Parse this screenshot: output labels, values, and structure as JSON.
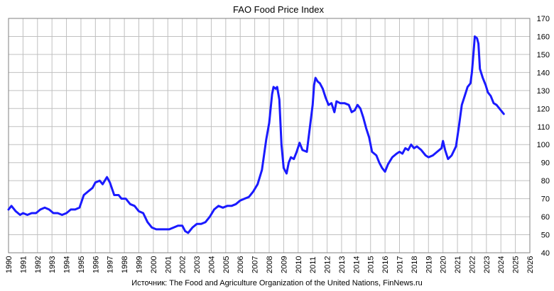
{
  "chart_data": {
    "type": "line",
    "title": "FAO Food Price Index",
    "source": "Источник: The Food and Agriculture Organization of the United Nations, FinNews.ru",
    "xlabel": "",
    "ylabel": "",
    "xlim": [
      1990,
      2026
    ],
    "ylim": [
      40,
      170
    ],
    "x_ticks": [
      1990,
      1991,
      1992,
      1993,
      1994,
      1995,
      1996,
      1997,
      1998,
      1999,
      2000,
      2001,
      2002,
      2003,
      2004,
      2005,
      2006,
      2007,
      2008,
      2009,
      2010,
      2011,
      2012,
      2013,
      2014,
      2015,
      2016,
      2017,
      2018,
      2019,
      2020,
      2021,
      2022,
      2023,
      2024,
      2025,
      2026
    ],
    "y_ticks": [
      40,
      50,
      60,
      70,
      80,
      90,
      100,
      110,
      120,
      130,
      140,
      150,
      160,
      170
    ],
    "y_axis_side": "right",
    "grid": true,
    "line_color": "#1a1aff",
    "series": [
      {
        "name": "",
        "points": [
          [
            1990.0,
            64
          ],
          [
            1990.2,
            66
          ],
          [
            1990.5,
            63
          ],
          [
            1990.8,
            61
          ],
          [
            1991.0,
            62
          ],
          [
            1991.3,
            61
          ],
          [
            1991.6,
            62
          ],
          [
            1991.9,
            62
          ],
          [
            1992.2,
            64
          ],
          [
            1992.5,
            65
          ],
          [
            1992.8,
            64
          ],
          [
            1993.1,
            62
          ],
          [
            1993.4,
            62
          ],
          [
            1993.7,
            61
          ],
          [
            1994.0,
            62
          ],
          [
            1994.3,
            64
          ],
          [
            1994.6,
            64
          ],
          [
            1994.9,
            65
          ],
          [
            1995.2,
            72
          ],
          [
            1995.5,
            74
          ],
          [
            1995.8,
            76
          ],
          [
            1996.0,
            79
          ],
          [
            1996.3,
            80
          ],
          [
            1996.5,
            78
          ],
          [
            1996.8,
            82
          ],
          [
            1997.0,
            79
          ],
          [
            1997.3,
            72
          ],
          [
            1997.6,
            72
          ],
          [
            1997.8,
            70
          ],
          [
            1998.1,
            70
          ],
          [
            1998.4,
            67
          ],
          [
            1998.7,
            66
          ],
          [
            1999.0,
            63
          ],
          [
            1999.3,
            62
          ],
          [
            1999.6,
            57
          ],
          [
            1999.9,
            54
          ],
          [
            2000.2,
            53
          ],
          [
            2000.5,
            53
          ],
          [
            2000.8,
            53
          ],
          [
            2001.1,
            53
          ],
          [
            2001.4,
            54
          ],
          [
            2001.7,
            55
          ],
          [
            2002.0,
            55
          ],
          [
            2002.2,
            52
          ],
          [
            2002.4,
            51
          ],
          [
            2002.7,
            54
          ],
          [
            2003.0,
            56
          ],
          [
            2003.3,
            56
          ],
          [
            2003.6,
            57
          ],
          [
            2003.9,
            60
          ],
          [
            2004.2,
            64
          ],
          [
            2004.5,
            66
          ],
          [
            2004.8,
            65
          ],
          [
            2005.1,
            66
          ],
          [
            2005.4,
            66
          ],
          [
            2005.7,
            67
          ],
          [
            2006.0,
            69
          ],
          [
            2006.3,
            70
          ],
          [
            2006.6,
            71
          ],
          [
            2006.9,
            74
          ],
          [
            2007.2,
            78
          ],
          [
            2007.5,
            86
          ],
          [
            2007.8,
            103
          ],
          [
            2008.0,
            112
          ],
          [
            2008.2,
            128
          ],
          [
            2008.3,
            132
          ],
          [
            2008.45,
            131
          ],
          [
            2008.55,
            132
          ],
          [
            2008.7,
            125
          ],
          [
            2008.85,
            100
          ],
          [
            2009.0,
            87
          ],
          [
            2009.2,
            84
          ],
          [
            2009.35,
            90
          ],
          [
            2009.5,
            93
          ],
          [
            2009.7,
            92
          ],
          [
            2009.9,
            96
          ],
          [
            2010.1,
            101
          ],
          [
            2010.3,
            97
          ],
          [
            2010.6,
            96
          ],
          [
            2010.8,
            109
          ],
          [
            2011.0,
            122
          ],
          [
            2011.1,
            133
          ],
          [
            2011.2,
            137
          ],
          [
            2011.35,
            135
          ],
          [
            2011.5,
            134
          ],
          [
            2011.7,
            131
          ],
          [
            2011.9,
            126
          ],
          [
            2012.1,
            122
          ],
          [
            2012.3,
            123
          ],
          [
            2012.5,
            118
          ],
          [
            2012.65,
            124
          ],
          [
            2012.9,
            123
          ],
          [
            2013.2,
            123
          ],
          [
            2013.5,
            122
          ],
          [
            2013.7,
            118
          ],
          [
            2013.9,
            119
          ],
          [
            2014.1,
            122
          ],
          [
            2014.3,
            120
          ],
          [
            2014.5,
            115
          ],
          [
            2014.7,
            109
          ],
          [
            2014.9,
            104
          ],
          [
            2015.1,
            96
          ],
          [
            2015.4,
            94
          ],
          [
            2015.6,
            90
          ],
          [
            2015.8,
            87
          ],
          [
            2016.0,
            85
          ],
          [
            2016.2,
            89
          ],
          [
            2016.5,
            93
          ],
          [
            2016.8,
            95
          ],
          [
            2017.0,
            96
          ],
          [
            2017.2,
            95
          ],
          [
            2017.4,
            98
          ],
          [
            2017.6,
            97
          ],
          [
            2017.8,
            100
          ],
          [
            2018.0,
            98
          ],
          [
            2018.2,
            99
          ],
          [
            2018.5,
            97
          ],
          [
            2018.8,
            94
          ],
          [
            2019.0,
            93
          ],
          [
            2019.3,
            94
          ],
          [
            2019.6,
            96
          ],
          [
            2019.9,
            98
          ],
          [
            2020.0,
            102
          ],
          [
            2020.15,
            97
          ],
          [
            2020.35,
            92
          ],
          [
            2020.6,
            94
          ],
          [
            2020.9,
            99
          ],
          [
            2021.1,
            110
          ],
          [
            2021.3,
            122
          ],
          [
            2021.5,
            127
          ],
          [
            2021.7,
            132
          ],
          [
            2021.9,
            134
          ],
          [
            2022.0,
            140
          ],
          [
            2022.1,
            150
          ],
          [
            2022.2,
            160
          ],
          [
            2022.35,
            159
          ],
          [
            2022.45,
            156
          ],
          [
            2022.55,
            142
          ],
          [
            2022.75,
            137
          ],
          [
            2022.95,
            133
          ],
          [
            2023.1,
            129
          ],
          [
            2023.3,
            127
          ],
          [
            2023.5,
            123
          ],
          [
            2023.7,
            122
          ],
          [
            2023.9,
            120
          ],
          [
            2024.1,
            118
          ],
          [
            2024.2,
            117
          ]
        ]
      }
    ]
  }
}
